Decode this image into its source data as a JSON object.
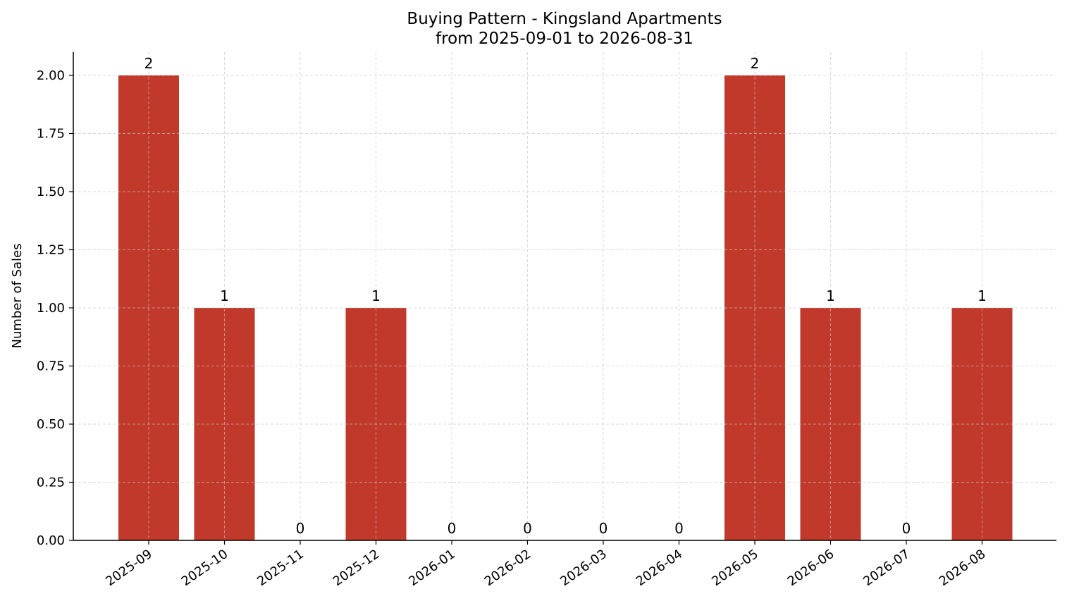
{
  "chart_data": {
    "type": "bar",
    "title": "Buying Pattern - Kingsland Apartments",
    "subtitle": "from 2025-09-01 to 2026-08-31",
    "xlabel": "",
    "ylabel": "Number of Sales",
    "categories": [
      "2025-09",
      "2025-10",
      "2025-11",
      "2025-12",
      "2026-01",
      "2026-02",
      "2026-03",
      "2026-04",
      "2026-05",
      "2026-06",
      "2026-07",
      "2026-08"
    ],
    "values": [
      2,
      1,
      0,
      1,
      0,
      0,
      0,
      0,
      2,
      1,
      0,
      1
    ],
    "data_labels": [
      "2",
      "1",
      "0",
      "1",
      "0",
      "0",
      "0",
      "0",
      "2",
      "1",
      "0",
      "1"
    ],
    "ylim": [
      0,
      2.1
    ],
    "yticks": [
      0,
      0.25,
      0.5,
      0.75,
      1.0,
      1.25,
      1.5,
      1.75,
      2.0
    ],
    "ytick_labels": [
      "0.00",
      "0.25",
      "0.50",
      "0.75",
      "1.00",
      "1.25",
      "1.50",
      "1.75",
      "2.00"
    ],
    "grid": true,
    "bar_color": "#c0392b"
  }
}
